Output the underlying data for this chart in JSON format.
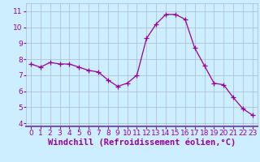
{
  "x": [
    0,
    1,
    2,
    3,
    4,
    5,
    6,
    7,
    8,
    9,
    10,
    11,
    12,
    13,
    14,
    15,
    16,
    17,
    18,
    19,
    20,
    21,
    22,
    23
  ],
  "y": [
    7.7,
    7.5,
    7.8,
    7.7,
    7.7,
    7.5,
    7.3,
    7.2,
    6.7,
    6.3,
    6.5,
    7.0,
    9.3,
    10.2,
    10.8,
    10.8,
    10.5,
    8.7,
    7.6,
    6.5,
    6.4,
    5.6,
    4.9,
    4.5
  ],
  "line_color": "#990099",
  "marker": "+",
  "marker_size": 4,
  "bg_color": "#cceeff",
  "grid_color": "#aabbcc",
  "xlabel": "Windchill (Refroidissement éolien,°C)",
  "xlabel_color": "#990099",
  "ylim": [
    3.8,
    11.5
  ],
  "xlim": [
    -0.5,
    23.5
  ],
  "yticks": [
    4,
    5,
    6,
    7,
    8,
    9,
    10,
    11
  ],
  "xticks": [
    0,
    1,
    2,
    3,
    4,
    5,
    6,
    7,
    8,
    9,
    10,
    11,
    12,
    13,
    14,
    15,
    16,
    17,
    18,
    19,
    20,
    21,
    22,
    23
  ],
  "tick_color": "#990099",
  "tick_fontsize": 6.5,
  "xlabel_fontsize": 7.5,
  "spine_color": "#7755aa"
}
